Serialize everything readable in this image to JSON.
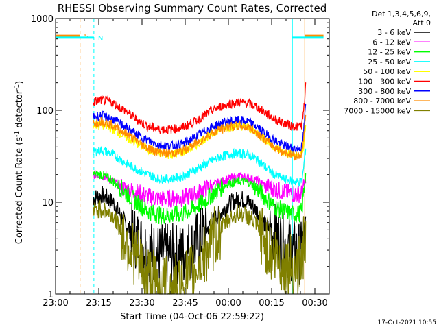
{
  "chart_data": {
    "type": "line",
    "title": "RHESSI Observing Summary Count Rates, Corrected",
    "xlabel": "Start Time (04-Oct-06 22:59:22)",
    "ylabel_main": "Corrected Count Rate (s",
    "ylabel_sup1": "-1",
    "ylabel_mid": " detector",
    "ylabel_sup2": "-1",
    "ylabel_end": ")",
    "y_scale": "log",
    "ylim": [
      1,
      1000
    ],
    "y_ticks": [
      {
        "value": 1,
        "label": "1"
      },
      {
        "value": 10,
        "label": "10"
      },
      {
        "value": 100,
        "label": "100"
      },
      {
        "value": 1000,
        "label": "1000"
      }
    ],
    "x_unit": "minutes after 23:00 (04-Oct-06)",
    "xlim": [
      0,
      95
    ],
    "x_ticks": [
      {
        "value": 0,
        "label": "23:00"
      },
      {
        "value": 15,
        "label": "23:15"
      },
      {
        "value": 30,
        "label": "23:30"
      },
      {
        "value": 45,
        "label": "23:45"
      },
      {
        "value": 60,
        "label": "00:00"
      },
      {
        "value": 75,
        "label": "00:15"
      },
      {
        "value": 90,
        "label": "00:30"
      }
    ],
    "legend_header": [
      "Det 1,3,4,5,6,9,",
      "Att 0"
    ],
    "legend_position": "right",
    "series": [
      {
        "name": "3 - 6 keV",
        "color": "#000000",
        "points": [
          [
            13,
            11
          ],
          [
            16,
            12
          ],
          [
            20,
            10
          ],
          [
            24,
            6
          ],
          [
            28,
            4
          ],
          [
            32,
            3
          ],
          [
            36,
            2.7
          ],
          [
            40,
            2.7
          ],
          [
            44,
            2.7
          ],
          [
            48,
            3.3
          ],
          [
            52,
            4.8
          ],
          [
            56,
            7
          ],
          [
            60,
            9.5
          ],
          [
            64,
            11
          ],
          [
            67,
            10
          ],
          [
            70,
            8
          ],
          [
            73,
            5.5
          ],
          [
            76,
            4.5
          ],
          [
            79,
            3.5
          ],
          [
            82,
            3
          ],
          [
            84,
            2.8
          ],
          [
            85.5,
            2.8
          ],
          [
            86,
            4
          ],
          [
            86.8,
            6
          ]
        ]
      },
      {
        "name": "6 - 12 keV",
        "color": "#ff00ff",
        "points": [
          [
            13,
            20
          ],
          [
            16,
            20
          ],
          [
            20,
            17
          ],
          [
            24,
            14
          ],
          [
            28,
            13
          ],
          [
            32,
            11.5
          ],
          [
            36,
            11
          ],
          [
            40,
            11
          ],
          [
            44,
            11
          ],
          [
            48,
            12
          ],
          [
            52,
            14
          ],
          [
            56,
            16
          ],
          [
            60,
            18
          ],
          [
            64,
            19
          ],
          [
            67,
            18.5
          ],
          [
            70,
            17
          ],
          [
            73,
            15
          ],
          [
            76,
            14
          ],
          [
            79,
            13
          ],
          [
            82,
            12.5
          ],
          [
            84,
            12.3
          ],
          [
            85.5,
            12.5
          ],
          [
            86,
            14
          ],
          [
            86.8,
            18
          ]
        ]
      },
      {
        "name": "12 - 25 keV",
        "color": "#00ff00",
        "points": [
          [
            13,
            20
          ],
          [
            16,
            20
          ],
          [
            20,
            17
          ],
          [
            24,
            13
          ],
          [
            28,
            10
          ],
          [
            32,
            8
          ],
          [
            36,
            7.2
          ],
          [
            40,
            7.2
          ],
          [
            44,
            7.5
          ],
          [
            48,
            8.5
          ],
          [
            52,
            10.5
          ],
          [
            56,
            13.5
          ],
          [
            60,
            16
          ],
          [
            64,
            17
          ],
          [
            67,
            16.5
          ],
          [
            70,
            14
          ],
          [
            73,
            11
          ],
          [
            76,
            9
          ],
          [
            79,
            8
          ],
          [
            82,
            7.5
          ],
          [
            84,
            7.3
          ],
          [
            85.5,
            8
          ],
          [
            86,
            12
          ],
          [
            86.8,
            20
          ]
        ]
      },
      {
        "name": "25 - 50 keV",
        "color": "#00ffff",
        "points": [
          [
            13,
            35
          ],
          [
            16,
            37
          ],
          [
            20,
            33
          ],
          [
            24,
            27
          ],
          [
            28,
            23
          ],
          [
            32,
            20
          ],
          [
            36,
            18
          ],
          [
            40,
            18
          ],
          [
            44,
            19
          ],
          [
            48,
            22
          ],
          [
            52,
            26
          ],
          [
            56,
            30
          ],
          [
            60,
            33
          ],
          [
            64,
            34
          ],
          [
            67,
            33
          ],
          [
            70,
            29
          ],
          [
            73,
            24
          ],
          [
            76,
            20
          ],
          [
            79,
            18
          ],
          [
            82,
            17
          ],
          [
            84,
            16.5
          ],
          [
            85.5,
            17
          ],
          [
            86,
            22
          ],
          [
            86.8,
            40
          ]
        ]
      },
      {
        "name": "50 - 100 keV",
        "color": "#ffff00",
        "points": [
          [
            13,
            68
          ],
          [
            16,
            70
          ],
          [
            20,
            62
          ],
          [
            24,
            52
          ],
          [
            28,
            44
          ],
          [
            32,
            38
          ],
          [
            36,
            34
          ],
          [
            40,
            33
          ],
          [
            44,
            35
          ],
          [
            48,
            40
          ],
          [
            52,
            50
          ],
          [
            56,
            60
          ],
          [
            60,
            66
          ],
          [
            64,
            68
          ],
          [
            67,
            65
          ],
          [
            70,
            57
          ],
          [
            73,
            47
          ],
          [
            76,
            40
          ],
          [
            79,
            35
          ],
          [
            82,
            33
          ],
          [
            84,
            32
          ],
          [
            85.5,
            34
          ],
          [
            86,
            40
          ],
          [
            86.8,
            65
          ]
        ]
      },
      {
        "name": "100 - 300 keV",
        "color": "#ff0000",
        "points": [
          [
            13,
            123
          ],
          [
            16,
            130
          ],
          [
            20,
            120
          ],
          [
            24,
            100
          ],
          [
            28,
            80
          ],
          [
            32,
            67
          ],
          [
            36,
            62
          ],
          [
            40,
            62
          ],
          [
            44,
            65
          ],
          [
            48,
            75
          ],
          [
            52,
            90
          ],
          [
            56,
            106
          ],
          [
            60,
            117
          ],
          [
            64,
            122
          ],
          [
            67,
            119
          ],
          [
            70,
            108
          ],
          [
            73,
            93
          ],
          [
            76,
            80
          ],
          [
            79,
            73
          ],
          [
            82,
            68
          ],
          [
            84,
            66
          ],
          [
            85.5,
            70
          ],
          [
            86,
            90
          ],
          [
            86.8,
            180
          ]
        ]
      },
      {
        "name": "300 - 800 keV",
        "color": "#0000ff",
        "points": [
          [
            13,
            85
          ],
          [
            16,
            88
          ],
          [
            20,
            80
          ],
          [
            24,
            67
          ],
          [
            28,
            55
          ],
          [
            32,
            47
          ],
          [
            36,
            42
          ],
          [
            40,
            41
          ],
          [
            44,
            43
          ],
          [
            48,
            50
          ],
          [
            52,
            60
          ],
          [
            56,
            70
          ],
          [
            60,
            76
          ],
          [
            64,
            78
          ],
          [
            67,
            75
          ],
          [
            70,
            66
          ],
          [
            73,
            55
          ],
          [
            76,
            47
          ],
          [
            79,
            42
          ],
          [
            82,
            39
          ],
          [
            84,
            38
          ],
          [
            85.5,
            40
          ],
          [
            86,
            55
          ],
          [
            86.8,
            110
          ]
        ]
      },
      {
        "name": "800 - 7000 keV",
        "color": "#ff8c00",
        "points": [
          [
            13,
            73
          ],
          [
            16,
            76
          ],
          [
            20,
            69
          ],
          [
            24,
            57
          ],
          [
            28,
            47
          ],
          [
            32,
            39
          ],
          [
            36,
            35
          ],
          [
            40,
            34
          ],
          [
            44,
            36
          ],
          [
            48,
            42
          ],
          [
            52,
            51
          ],
          [
            56,
            60
          ],
          [
            60,
            66
          ],
          [
            64,
            68
          ],
          [
            67,
            65
          ],
          [
            70,
            57
          ],
          [
            73,
            47
          ],
          [
            76,
            40
          ],
          [
            79,
            35
          ],
          [
            82,
            33
          ],
          [
            84,
            32
          ],
          [
            85.5,
            34
          ],
          [
            86,
            45
          ],
          [
            86.8,
            90
          ]
        ]
      },
      {
        "name": "7000 - 15000 keV",
        "color": "#808000",
        "points": [
          [
            13,
            8
          ],
          [
            16,
            8.5
          ],
          [
            20,
            7
          ],
          [
            24,
            4.2
          ],
          [
            28,
            2.5
          ],
          [
            32,
            1.6
          ],
          [
            36,
            1.2
          ],
          [
            40,
            1.15
          ],
          [
            44,
            1.3
          ],
          [
            48,
            1.8
          ],
          [
            52,
            2.8
          ],
          [
            56,
            4.5
          ],
          [
            60,
            6.5
          ],
          [
            64,
            7.7
          ],
          [
            67,
            7
          ],
          [
            70,
            5.5
          ],
          [
            73,
            3.5
          ],
          [
            76,
            2.6
          ],
          [
            79,
            2.1
          ],
          [
            82,
            2
          ],
          [
            84,
            2
          ],
          [
            85.5,
            2.2
          ],
          [
            86,
            3
          ],
          [
            86.8,
            5
          ]
        ]
      }
    ],
    "markers": [
      {
        "label": "S",
        "color": "#ff8c00",
        "x": 8.5,
        "y": 650,
        "bar_from": 0,
        "bar_to": 8.5,
        "bar_from2": 86.5,
        "bar_to2": 93
      },
      {
        "label": "N",
        "color": "#00ffff",
        "x": 13.3,
        "y": 620,
        "bar_from": 0,
        "bar_to": 13.3,
        "bar_from2": 82.2,
        "bar_to2": 93
      }
    ],
    "vlines": [
      {
        "x": 0,
        "color": "#00ffff",
        "style": "solid"
      },
      {
        "x": 8.5,
        "color": "#ff8c00",
        "style": "dashed"
      },
      {
        "x": 13.3,
        "color": "#00ffff",
        "style": "dashed"
      },
      {
        "x": 82.2,
        "color": "#00ffff",
        "style": "solid"
      },
      {
        "x": 86.5,
        "color": "#ff8c00",
        "style": "solid"
      },
      {
        "x": 92.5,
        "color": "#ff8c00",
        "style": "dashed"
      }
    ]
  },
  "footer_timestamp": "17-Oct-2021 10:55"
}
